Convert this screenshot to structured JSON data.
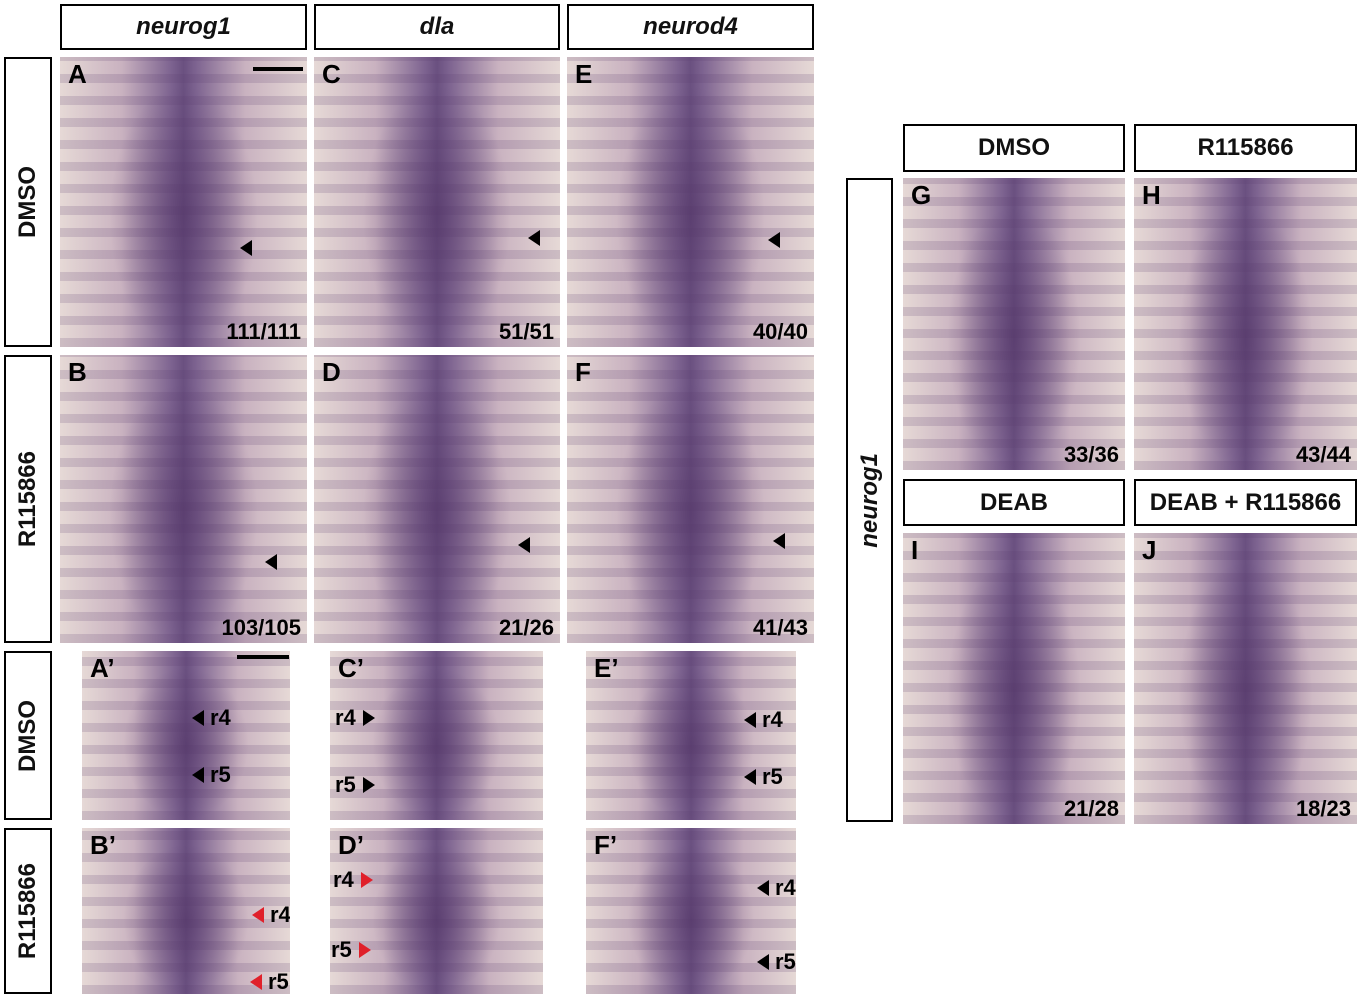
{
  "left": {
    "columns": [
      "neurog1",
      "dla",
      "neurod4"
    ],
    "rows": [
      "DMSO",
      "R115866"
    ],
    "zoom_rows": [
      "DMSO",
      "R115866"
    ],
    "panels": [
      {
        "letter": "A",
        "count": "111/111"
      },
      {
        "letter": "B",
        "count": "103/105"
      },
      {
        "letter": "C",
        "count": "51/51"
      },
      {
        "letter": "D",
        "count": "21/26"
      },
      {
        "letter": "E",
        "count": "40/40"
      },
      {
        "letter": "F",
        "count": "41/43"
      }
    ],
    "zoom_panels": [
      {
        "letter": "A’",
        "labels": [
          "r4",
          "r5"
        ]
      },
      {
        "letter": "B’",
        "labels": [
          "r4",
          "r5"
        ]
      },
      {
        "letter": "C’",
        "labels": [
          "r4",
          "r5"
        ]
      },
      {
        "letter": "D’",
        "labels": [
          "r4",
          "r5"
        ]
      },
      {
        "letter": "E’",
        "labels": [
          "r4",
          "r5"
        ]
      },
      {
        "letter": "F’",
        "labels": [
          "r4",
          "r5"
        ]
      }
    ]
  },
  "right": {
    "row_label": "neurog1",
    "headers": [
      "DMSO",
      "R115866",
      "DEAB",
      "DEAB + R115866"
    ],
    "panels": [
      {
        "letter": "G",
        "count": "33/36"
      },
      {
        "letter": "H",
        "count": "43/44"
      },
      {
        "letter": "I",
        "count": "21/28"
      },
      {
        "letter": "J",
        "count": "18/23"
      }
    ]
  }
}
